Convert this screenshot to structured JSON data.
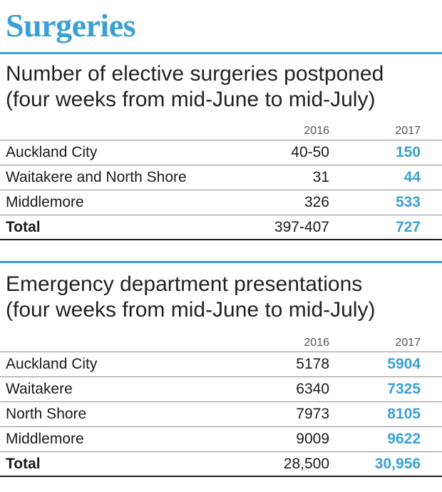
{
  "title": "Surgeries",
  "accent_color": "#3aa0d4",
  "sections": [
    {
      "heading_line1": "Number of elective surgeries postponed",
      "heading_line2": "(four weeks from mid-June to mid-July)",
      "columns": [
        "2016",
        "2017"
      ],
      "rows": [
        {
          "label": "Auckland City",
          "v2016": "40-50",
          "v2017": "150"
        },
        {
          "label": "Waitakere and North Shore",
          "v2016": "31",
          "v2017": "44"
        },
        {
          "label": "Middlemore",
          "v2016": "326",
          "v2017": "533"
        }
      ],
      "total": {
        "label": "Total",
        "v2016": "397-407",
        "v2017": "727"
      }
    },
    {
      "heading_line1": "Emergency department presentations",
      "heading_line2": "(four weeks from mid-June to mid-July)",
      "columns": [
        "2016",
        "2017"
      ],
      "rows": [
        {
          "label": "Auckland City",
          "v2016": "5178",
          "v2017": "5904"
        },
        {
          "label": "Waitakere",
          "v2016": "6340",
          "v2017": "7325"
        },
        {
          "label": "North Shore",
          "v2016": "7973",
          "v2017": "8105"
        },
        {
          "label": "Middlemore",
          "v2016": "9009",
          "v2017": "9622"
        }
      ],
      "total": {
        "label": "Total",
        "v2016": "28,500",
        "v2017": "30,956"
      }
    }
  ]
}
